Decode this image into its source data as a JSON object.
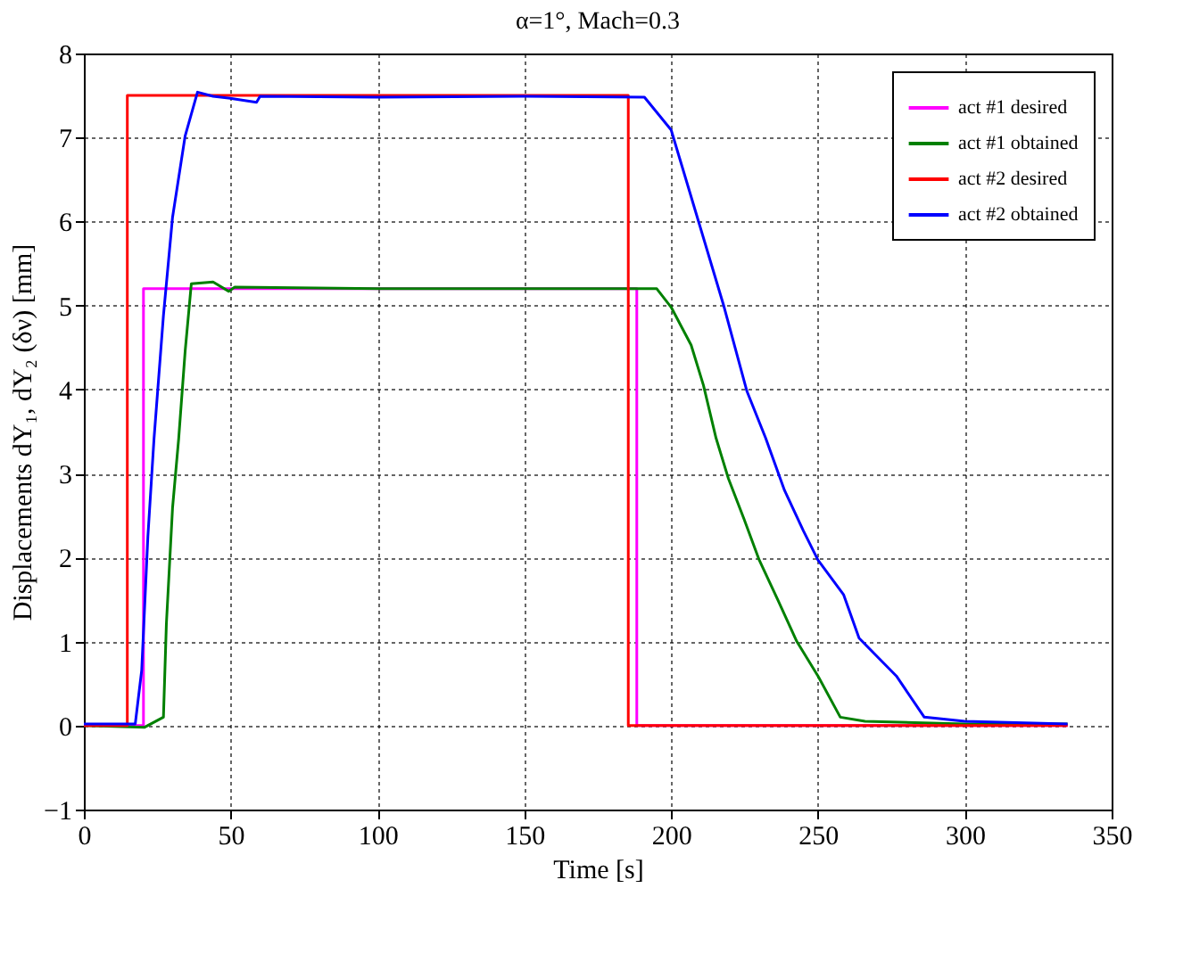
{
  "chart_data": {
    "type": "line",
    "title": "α=1°, Mach=0.3",
    "xlabel": "Time [s]",
    "ylabel": "Displacements dY₁, dY₂ (δν) [mm]",
    "xlim": [
      0,
      350
    ],
    "xticks": [
      0,
      50,
      100,
      150,
      200,
      250,
      300,
      350
    ],
    "ylim": [
      -1,
      8
    ],
    "yticks": [
      -1,
      0,
      1,
      2,
      3,
      4,
      5,
      6,
      7,
      8
    ],
    "grid": true,
    "legend": "top right",
    "line_style": "solid",
    "marker": "none",
    "series": [
      {
        "name": "act #1 desired",
        "color": "#ff00ff",
        "x": [
          0,
          20.3,
          20.3,
          188.3,
          188.3,
          335
        ],
        "values": [
          0,
          0,
          5.2,
          5.2,
          0,
          0
        ]
      },
      {
        "name": "act #1 obtained",
        "color": "#008000",
        "x": [
          0,
          20.7,
          27.1,
          28.1,
          30.2,
          32.3,
          34.5,
          36.6,
          44,
          49.3,
          51.4,
          100,
          150,
          195.1,
          200,
          206.8,
          211,
          215.3,
          219.5,
          224.8,
          230,
          236.4,
          242.8,
          250,
          257.6,
          266,
          300,
          335
        ],
        "values": [
          0,
          -0.02,
          0.1,
          1.21,
          2.59,
          3.42,
          4.46,
          5.26,
          5.28,
          5.17,
          5.22,
          5.2,
          5.2,
          5.2,
          4.98,
          4.53,
          4.05,
          3.42,
          2.94,
          2.46,
          1.97,
          1.49,
          1.0,
          0.59,
          0.1,
          0.05,
          0.02,
          0.02
        ]
      },
      {
        "name": "act #2 desired",
        "color": "#ff0000",
        "x": [
          0,
          14.8,
          14.8,
          185.4,
          185.4,
          335
        ],
        "values": [
          0,
          0,
          7.5,
          7.5,
          0,
          0
        ]
      },
      {
        "name": "act #2 obtained",
        "color": "#0000ff",
        "x": [
          0,
          17.5,
          19.7,
          21.8,
          23.9,
          27.1,
          30.2,
          34.5,
          38.7,
          44,
          49.3,
          58.8,
          60,
          100,
          150,
          190.9,
          200,
          208.9,
          217.8,
          225.8,
          232.2,
          238.6,
          245,
          250,
          258.7,
          264,
          276.7,
          286.2,
          300,
          335
        ],
        "values": [
          0.02,
          0.02,
          0.66,
          2.25,
          3.42,
          4.88,
          6.05,
          7.02,
          7.54,
          7.49,
          7.47,
          7.42,
          7.49,
          7.48,
          7.49,
          7.48,
          7.09,
          6.05,
          5.01,
          3.98,
          3.42,
          2.8,
          2.32,
          1.97,
          1.56,
          1.04,
          0.59,
          0.1,
          0.05,
          0.02
        ]
      }
    ]
  }
}
